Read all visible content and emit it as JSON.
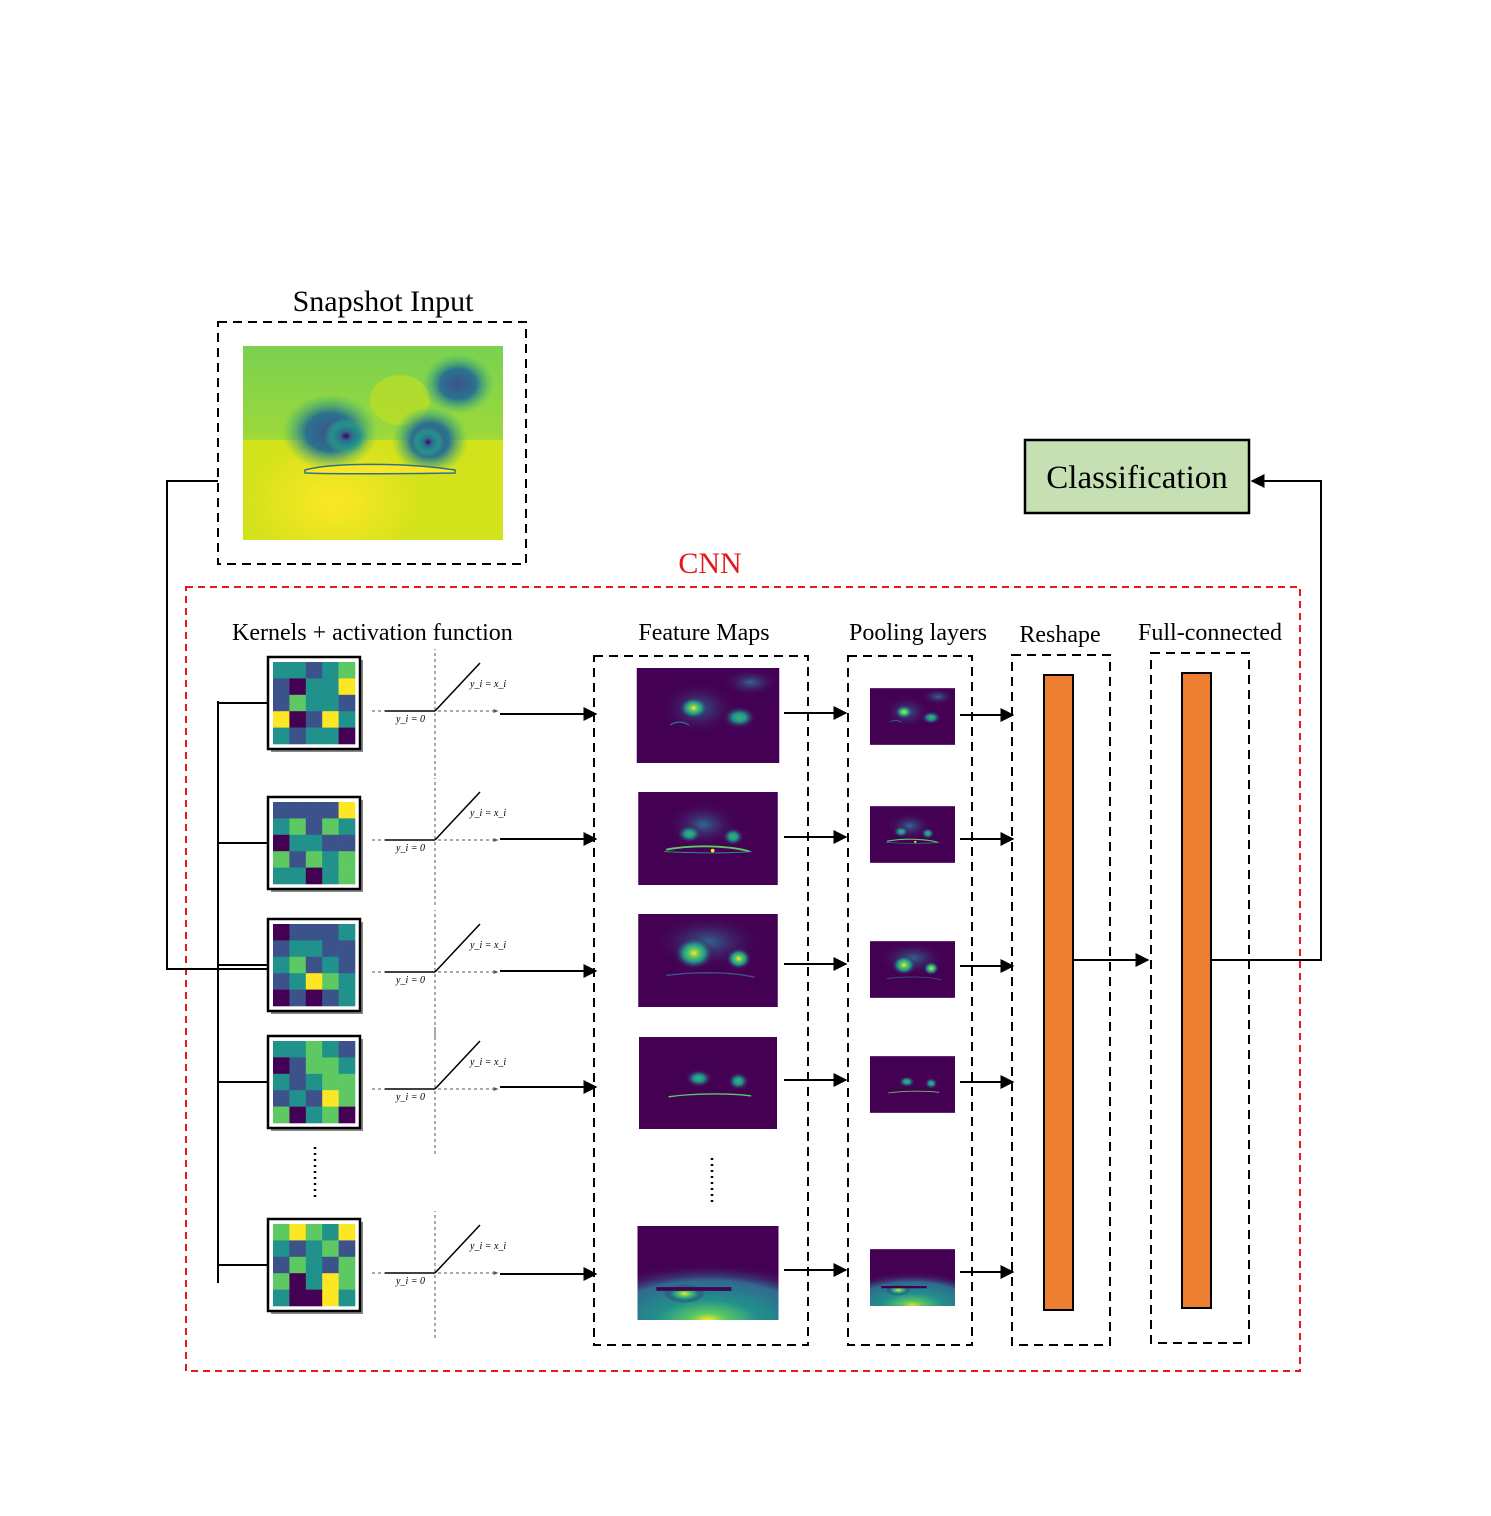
{
  "title": "Snapshot Input",
  "cnn_label": "CNN",
  "classification_label": "Classification",
  "stage_labels": {
    "kernels": "Kernels + activation function",
    "feature_maps": "Feature Maps",
    "pooling": "Pooling layers",
    "reshape": "Reshape",
    "full_connected": "Full-connected"
  },
  "relu_labels": {
    "positive": "y_i = x_i",
    "zero": "y_i = 0"
  },
  "colors": {
    "cnn_border": "#e31a1c",
    "classification_fill": "#c6e0b4",
    "dense_fill": "#ed7d31",
    "viridis": [
      "#440154",
      "#3b528b",
      "#21918c",
      "#5ec962",
      "#fde725"
    ]
  },
  "kernels": [
    [
      [
        2,
        2,
        1,
        2,
        3
      ],
      [
        1,
        0,
        2,
        2,
        4
      ],
      [
        1,
        3,
        2,
        2,
        1
      ],
      [
        4,
        0,
        1,
        4,
        2
      ],
      [
        2,
        1,
        2,
        2,
        0
      ]
    ],
    [
      [
        1,
        1,
        1,
        1,
        4
      ],
      [
        2,
        3,
        1,
        3,
        2
      ],
      [
        0,
        2,
        2,
        1,
        1
      ],
      [
        3,
        1,
        3,
        2,
        3
      ],
      [
        2,
        2,
        0,
        2,
        3
      ]
    ],
    [
      [
        0,
        1,
        1,
        1,
        2
      ],
      [
        1,
        2,
        2,
        1,
        1
      ],
      [
        2,
        3,
        1,
        2,
        1
      ],
      [
        1,
        2,
        4,
        3,
        2
      ],
      [
        0,
        1,
        0,
        1,
        2
      ]
    ],
    [
      [
        2,
        2,
        3,
        2,
        1
      ],
      [
        0,
        1,
        3,
        3,
        2
      ],
      [
        2,
        1,
        2,
        3,
        3
      ],
      [
        1,
        2,
        1,
        4,
        3
      ],
      [
        3,
        0,
        2,
        3,
        0
      ]
    ],
    [
      [
        3,
        4,
        3,
        2,
        4
      ],
      [
        2,
        1,
        2,
        3,
        1
      ],
      [
        1,
        3,
        2,
        1,
        3
      ],
      [
        3,
        0,
        2,
        4,
        3
      ],
      [
        2,
        0,
        0,
        4,
        2
      ]
    ]
  ]
}
